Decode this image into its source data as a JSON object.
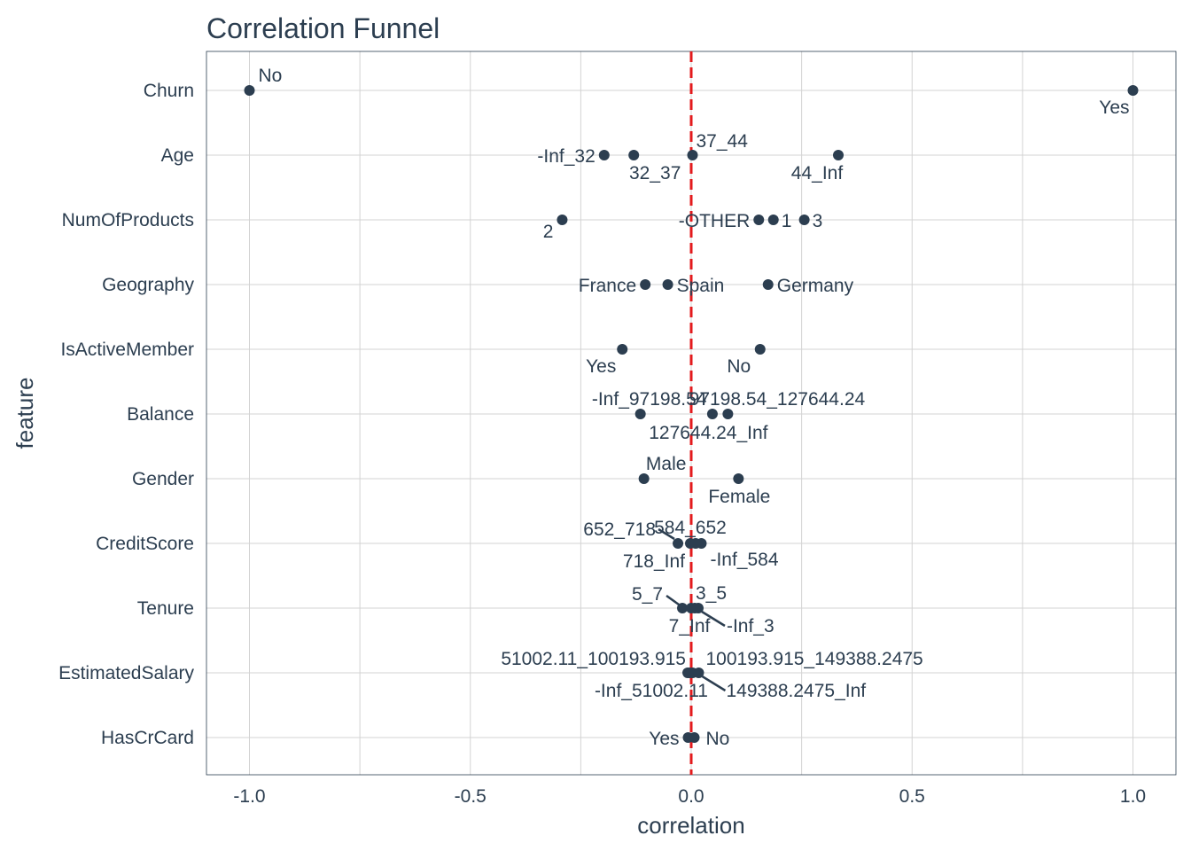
{
  "chart_data": {
    "type": "scatter",
    "title": "Correlation Funnel",
    "xlabel": "correlation",
    "ylabel": "feature",
    "xlim": [
      -1.1,
      1.1
    ],
    "x_ticks": [
      -1.0,
      -0.5,
      0.0,
      0.5,
      1.0
    ],
    "x_tick_labels": [
      "-1.0",
      "-0.5",
      "0.0",
      "0.5",
      "1.0"
    ],
    "reference_line": 0,
    "grid": true,
    "categories": [
      "Churn",
      "Age",
      "NumOfProducts",
      "Geography",
      "IsActiveMember",
      "Balance",
      "Gender",
      "CreditScore",
      "Tenure",
      "EstimatedSalary",
      "HasCrCard"
    ],
    "points": [
      {
        "feature": "Churn",
        "label": "No",
        "x": -1.0
      },
      {
        "feature": "Churn",
        "label": "Yes",
        "x": 1.0
      },
      {
        "feature": "Age",
        "label": "-Inf_32",
        "x": -0.197
      },
      {
        "feature": "Age",
        "label": "32_37",
        "x": -0.13
      },
      {
        "feature": "Age",
        "label": "37_44",
        "x": 0.003
      },
      {
        "feature": "Age",
        "label": "44_Inf",
        "x": 0.333
      },
      {
        "feature": "NumOfProducts",
        "label": "2",
        "x": -0.292
      },
      {
        "feature": "NumOfProducts",
        "label": "-OTHER",
        "x": 0.153
      },
      {
        "feature": "NumOfProducts",
        "label": "1",
        "x": 0.186
      },
      {
        "feature": "NumOfProducts",
        "label": "3",
        "x": 0.256
      },
      {
        "feature": "Geography",
        "label": "France",
        "x": -0.104
      },
      {
        "feature": "Geography",
        "label": "Spain",
        "x": -0.053
      },
      {
        "feature": "Geography",
        "label": "Germany",
        "x": 0.174
      },
      {
        "feature": "IsActiveMember",
        "label": "Yes",
        "x": -0.156
      },
      {
        "feature": "IsActiveMember",
        "label": "No",
        "x": 0.156
      },
      {
        "feature": "Balance",
        "label": "-Inf_97198.54",
        "x": -0.115
      },
      {
        "feature": "Balance",
        "label": "97198.54_127644.24",
        "x": 0.048
      },
      {
        "feature": "Balance",
        "label": "127644.24_Inf",
        "x": 0.083
      },
      {
        "feature": "Gender",
        "label": "Male",
        "x": -0.107
      },
      {
        "feature": "Gender",
        "label": "Female",
        "x": 0.107
      },
      {
        "feature": "CreditScore",
        "label": "652_718",
        "x": -0.03
      },
      {
        "feature": "CreditScore",
        "label": "718_Inf",
        "x": -0.002
      },
      {
        "feature": "CreditScore",
        "label": "584_652",
        "x": 0.01
      },
      {
        "feature": "CreditScore",
        "label": "-Inf_584",
        "x": 0.023
      },
      {
        "feature": "Tenure",
        "label": "5_7",
        "x": -0.02
      },
      {
        "feature": "Tenure",
        "label": "7_Inf",
        "x": 0.0
      },
      {
        "feature": "Tenure",
        "label": "3_5",
        "x": 0.008
      },
      {
        "feature": "Tenure",
        "label": "-Inf_3",
        "x": 0.016
      },
      {
        "feature": "EstimatedSalary",
        "label": "51002.11_100193.915",
        "x": -0.008
      },
      {
        "feature": "EstimatedSalary",
        "label": "-Inf_51002.11",
        "x": -0.004
      },
      {
        "feature": "EstimatedSalary",
        "label": "100193.915_149388.2475",
        "x": 0.003
      },
      {
        "feature": "EstimatedSalary",
        "label": "149388.2475_Inf",
        "x": 0.017
      },
      {
        "feature": "HasCrCard",
        "label": "Yes",
        "x": -0.007
      },
      {
        "feature": "HasCrCard",
        "label": "No",
        "x": 0.007
      }
    ]
  }
}
